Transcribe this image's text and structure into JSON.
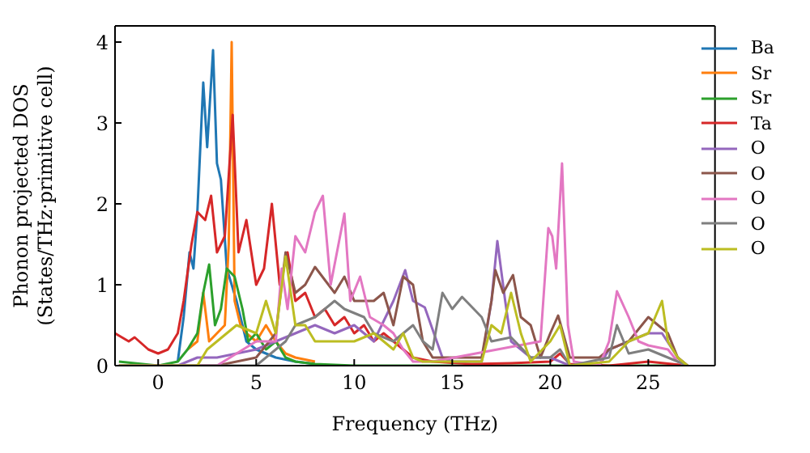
{
  "chart_data": {
    "type": "line",
    "xlabel": "Frequency (THz)",
    "ylabel": "Phonon projected DOS (States/THz·primitive cell)",
    "xlim": [
      -2.2,
      28.4
    ],
    "ylim": [
      0,
      4.2
    ],
    "xticks": [
      0,
      5,
      10,
      15,
      20,
      25
    ],
    "yticks": [
      0,
      1,
      2,
      3,
      4
    ],
    "grid": false,
    "legend": "top right",
    "marker": "none",
    "line_style": "solid",
    "series": [
      {
        "name": "Ba",
        "color": "#1f77b4",
        "x": [
          1,
          1.3,
          1.6,
          1.8,
          2.0,
          2.3,
          2.5,
          2.8,
          3.0,
          3.2,
          3.5,
          4.0,
          4.5,
          5.0,
          6.0,
          7.0,
          8.0
        ],
        "values": [
          0.05,
          0.6,
          1.4,
          1.2,
          1.9,
          3.5,
          2.7,
          3.9,
          2.5,
          2.3,
          1.2,
          0.8,
          0.3,
          0.2,
          0.1,
          0.05,
          0.02
        ]
      },
      {
        "name": "Sr",
        "color": "#ff7f0e",
        "x": [
          1.5,
          2,
          2.3,
          2.6,
          3,
          3.4,
          3.6,
          3.75,
          3.9,
          4.2,
          4.5,
          5,
          5.5,
          6,
          6.5,
          7,
          8
        ],
        "values": [
          0.2,
          0.3,
          0.9,
          0.3,
          0.4,
          0.5,
          1.5,
          4.0,
          0.8,
          0.5,
          0.4,
          0.3,
          0.5,
          0.3,
          0.15,
          0.1,
          0.05
        ]
      },
      {
        "name": "Sr",
        "color": "#2ca02c",
        "x": [
          -2,
          0,
          1,
          1.5,
          2,
          2.3,
          2.6,
          2.9,
          3.2,
          3.5,
          3.9,
          4.3,
          4.6,
          5,
          5.5,
          6,
          6.5,
          7,
          8,
          10,
          27
        ],
        "values": [
          0.05,
          0,
          0.05,
          0.2,
          0.4,
          0.9,
          1.25,
          0.5,
          0.7,
          1.2,
          1.1,
          0.7,
          0.3,
          0.4,
          0.2,
          0.3,
          0.1,
          0.05,
          0.02,
          0,
          0
        ]
      },
      {
        "name": "Ta",
        "color": "#d62728",
        "x": [
          -2.2,
          -1.5,
          -1.2,
          -0.5,
          0,
          0.5,
          1,
          1.3,
          1.7,
          2,
          2.4,
          2.7,
          3,
          3.4,
          3.8,
          4.1,
          4.5,
          5,
          5.4,
          5.8,
          6.2,
          6.6,
          7,
          7.5,
          8,
          8.5,
          9,
          9.5,
          10,
          10.5,
          11,
          11.5,
          12,
          12.5,
          13,
          14,
          16,
          18,
          20,
          20.5,
          21,
          23,
          25,
          27
        ],
        "values": [
          0.4,
          0.3,
          0.35,
          0.2,
          0.15,
          0.2,
          0.4,
          0.8,
          1.5,
          1.9,
          1.8,
          2.1,
          1.4,
          1.6,
          3.1,
          1.4,
          1.8,
          1.0,
          1.2,
          2.0,
          1.0,
          1.4,
          0.8,
          0.9,
          0.6,
          0.7,
          0.5,
          0.6,
          0.4,
          0.5,
          0.3,
          0.4,
          0.3,
          0.2,
          0.1,
          0.05,
          0.02,
          0.03,
          0.05,
          0.15,
          0.02,
          0,
          0.05,
          0
        ]
      },
      {
        "name": "O",
        "color": "#9467bd",
        "x": [
          -2,
          1,
          2,
          3,
          4,
          5,
          6,
          7,
          8,
          9,
          10,
          11,
          12,
          12.6,
          13,
          13.6,
          14.5,
          15,
          16.5,
          17,
          17.3,
          17.7,
          18,
          19,
          20,
          21,
          22.5,
          23,
          24,
          25,
          25.7,
          26.5,
          27
        ],
        "values": [
          0,
          0,
          0.1,
          0.1,
          0.15,
          0.2,
          0.3,
          0.4,
          0.5,
          0.4,
          0.5,
          0.3,
          0.8,
          1.18,
          0.8,
          0.72,
          0.1,
          0.05,
          0.05,
          0.8,
          1.54,
          0.8,
          0.3,
          0.1,
          0.1,
          0,
          0,
          0.2,
          0.3,
          0.4,
          0.4,
          0.1,
          0
        ]
      },
      {
        "name": "O",
        "color": "#8c564b",
        "x": [
          -2,
          3,
          5,
          6,
          6.5,
          7,
          7.5,
          8,
          9,
          9.5,
          10,
          11,
          11.5,
          12,
          12.5,
          13,
          13.5,
          14,
          15,
          16.5,
          17,
          17.2,
          17.6,
          18.1,
          18.5,
          19,
          19.5,
          20,
          20.4,
          21,
          22.5,
          23,
          24,
          25,
          26,
          26.5,
          27
        ],
        "values": [
          0,
          0,
          0.1,
          0.4,
          1.4,
          0.9,
          1.0,
          1.22,
          0.9,
          1.1,
          0.8,
          0.8,
          0.9,
          0.5,
          1.1,
          1.0,
          0.3,
          0.1,
          0.1,
          0.1,
          0.8,
          1.18,
          0.9,
          1.12,
          0.6,
          0.5,
          0.1,
          0.4,
          0.62,
          0.1,
          0.1,
          0.2,
          0.3,
          0.6,
          0.4,
          0.1,
          0
        ]
      },
      {
        "name": "O",
        "color": "#e377c2",
        "x": [
          -2,
          3,
          5,
          6,
          6.3,
          6.6,
          7,
          7.5,
          8,
          8.4,
          8.8,
          9.5,
          9.8,
          10.3,
          10.8,
          11.5,
          12,
          12.5,
          13,
          14,
          19.5,
          19.9,
          20.1,
          20.3,
          20.6,
          20.9,
          21.2,
          22.5,
          23,
          23.4,
          24,
          24.5,
          25,
          26,
          26.5,
          27
        ],
        "values": [
          0,
          0,
          0.3,
          0.3,
          1.2,
          0.7,
          1.6,
          1.4,
          1.9,
          2.1,
          1.0,
          1.88,
          0.8,
          1.1,
          0.6,
          0.5,
          0.4,
          0.2,
          0.05,
          0.05,
          0.3,
          1.7,
          1.6,
          1.2,
          2.5,
          0.5,
          0.05,
          0,
          0.3,
          0.92,
          0.6,
          0.3,
          0.25,
          0.2,
          0.05,
          0
        ]
      },
      {
        "name": "O",
        "color": "#7f7f7f",
        "x": [
          -2,
          5,
          6.5,
          7,
          8,
          9,
          9.5,
          10.5,
          11,
          12,
          13,
          13.5,
          14,
          14.5,
          15,
          15.5,
          16.5,
          17,
          18,
          19,
          20,
          20.5,
          21,
          23,
          23.4,
          24,
          25,
          26,
          27
        ],
        "values": [
          0,
          0,
          0.3,
          0.5,
          0.6,
          0.8,
          0.7,
          0.6,
          0.4,
          0.3,
          0.5,
          0.3,
          0.2,
          0.9,
          0.7,
          0.85,
          0.6,
          0.3,
          0.35,
          0.1,
          0.1,
          0.2,
          0,
          0.1,
          0.5,
          0.15,
          0.2,
          0.1,
          0
        ]
      },
      {
        "name": "O",
        "color": "#bcbd22",
        "x": [
          -2,
          2,
          2.5,
          3,
          4,
          5,
          5.5,
          6,
          6.5,
          7,
          7.5,
          8,
          9,
          10,
          11,
          12,
          12.5,
          13,
          13.5,
          16.5,
          17,
          17.5,
          18,
          18.5,
          19,
          20,
          20.5,
          21,
          23,
          24,
          25,
          25.7,
          26,
          26.5,
          27
        ],
        "values": [
          0,
          0,
          0.2,
          0.3,
          0.5,
          0.4,
          0.8,
          0.4,
          1.35,
          0.5,
          0.5,
          0.3,
          0.3,
          0.3,
          0.4,
          0.2,
          0.4,
          0.1,
          0.05,
          0.05,
          0.5,
          0.4,
          0.9,
          0.4,
          0.05,
          0.3,
          0.5,
          0,
          0.05,
          0.3,
          0.4,
          0.8,
          0.3,
          0.1,
          0
        ]
      }
    ]
  }
}
